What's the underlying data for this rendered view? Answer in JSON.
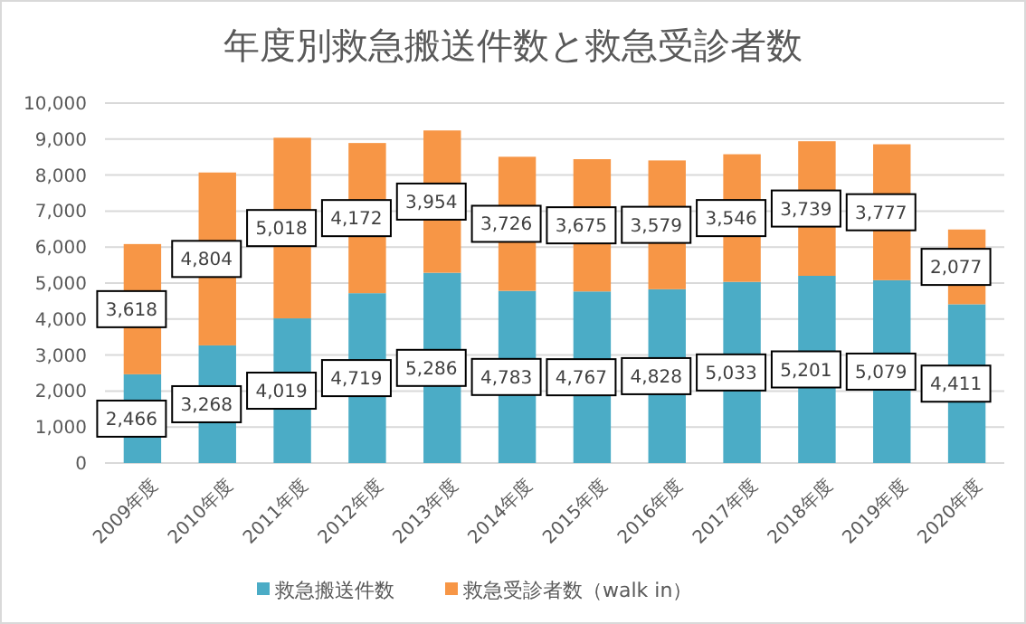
{
  "chart_data": {
    "type": "bar",
    "title": "年度別救急搬送件数と救急受診者数",
    "categories": [
      "2009年度",
      "2010年度",
      "2011年度",
      "2012年度",
      "2013年度",
      "2014年度",
      "2015年度",
      "2016年度",
      "2017年度",
      "2018年度",
      "2019年度",
      "2020年度"
    ],
    "series": [
      {
        "name": "救急搬送件数",
        "color": "#4bacc6",
        "values": [
          2466,
          3268,
          4019,
          4719,
          5286,
          4783,
          4767,
          4828,
          5033,
          5201,
          5079,
          4411
        ],
        "value_labels": [
          "2,466",
          "3,268",
          "4,019",
          "4,719",
          "5,286",
          "4,783",
          "4,767",
          "4,828",
          "5,033",
          "5,201",
          "5,079",
          "4,411"
        ]
      },
      {
        "name": "救急受診者数（walk in）",
        "color": "#f79646",
        "values": [
          3618,
          4804,
          5018,
          4172,
          3954,
          3726,
          3675,
          3579,
          3546,
          3739,
          3777,
          2077
        ],
        "value_labels": [
          "3,618",
          "4,804",
          "5,018",
          "4,172",
          "3,954",
          "3,726",
          "3,675",
          "3,579",
          "3,546",
          "3,739",
          "3,777",
          "2,077"
        ]
      }
    ],
    "stacked": true,
    "ylim": [
      0,
      10000
    ],
    "yticks": [
      {
        "value": 0,
        "label": "0"
      },
      {
        "value": 1000,
        "label": "1,000"
      },
      {
        "value": 2000,
        "label": "2,000"
      },
      {
        "value": 3000,
        "label": "3,000"
      },
      {
        "value": 4000,
        "label": "4,000"
      },
      {
        "value": 5000,
        "label": "5,000"
      },
      {
        "value": 6000,
        "label": "6,000"
      },
      {
        "value": 7000,
        "label": "7,000"
      },
      {
        "value": 8000,
        "label": "8,000"
      },
      {
        "value": 9000,
        "label": "9,000"
      },
      {
        "value": 10000,
        "label": "10,000"
      }
    ],
    "grid": "y",
    "legend": "bottom"
  }
}
